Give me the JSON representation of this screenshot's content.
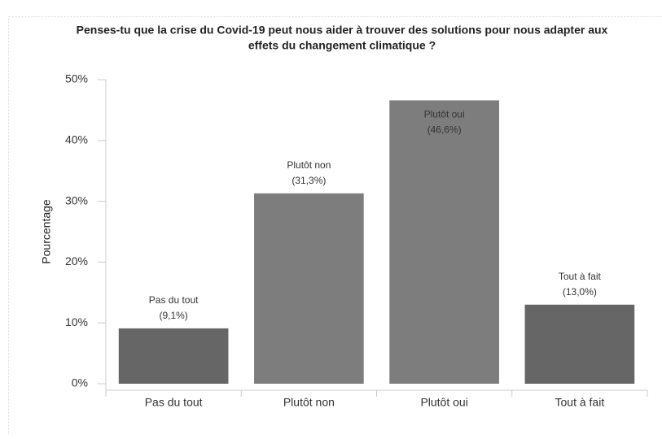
{
  "chart_data": {
    "type": "bar",
    "title": "Penses-tu que la crise du Covid-19 peut nous aider à trouver des solutions pour nous adapter aux",
    "subtitle": "effets du changement climatique ?",
    "y_label": "Pourcentage",
    "categories": [
      "Pas du tout",
      "Plutôt non",
      "Plutôt oui",
      "Tout à fait"
    ],
    "values": [
      9.1,
      31.3,
      46.6,
      13.0
    ],
    "value_labels": [
      "(9,1%)",
      "(31,3%)",
      "(46,6%)",
      "(13,0%)"
    ],
    "colors": [
      "#666666",
      "#7d7d7d",
      "#7d7d7d",
      "#666666"
    ],
    "ylim": [
      0,
      50
    ],
    "yticks": [
      {
        "value": 0,
        "label": "0%"
      },
      {
        "value": 10,
        "label": "10%"
      },
      {
        "value": 20,
        "label": "20%"
      },
      {
        "value": 30,
        "label": "30%"
      },
      {
        "value": 40,
        "label": "40%"
      },
      {
        "value": 50,
        "label": "50%"
      }
    ],
    "grid": false
  }
}
